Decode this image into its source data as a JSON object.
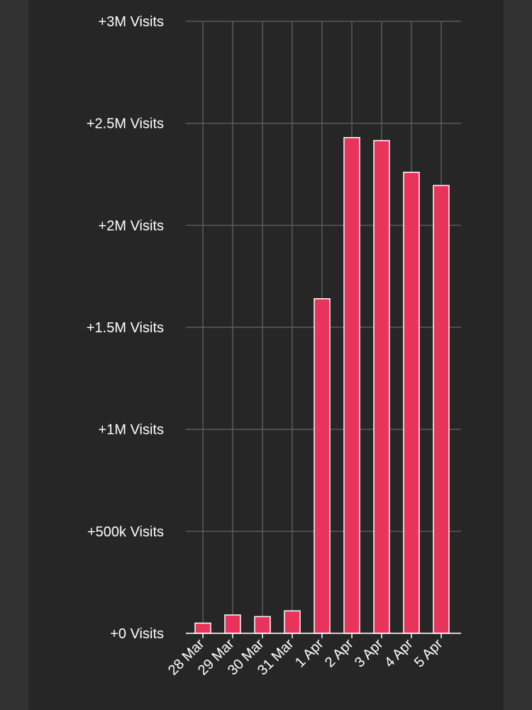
{
  "colors": {
    "background": "#323232",
    "panel": "#262626",
    "bar_fill": "#e8345a",
    "bar_stroke": "#ffffff",
    "grid": "#5a5a5a",
    "axis": "#ffffff",
    "text": "#ffffff"
  },
  "chart_data": {
    "type": "bar",
    "title": "",
    "xlabel": "",
    "ylabel": "",
    "categories": [
      "28 Mar",
      "29 Mar",
      "30 Mar",
      "31 Mar",
      "1 Apr",
      "2 Apr",
      "3 Apr",
      "4 Apr",
      "5 Apr"
    ],
    "values": [
      50000,
      90000,
      82000,
      110000,
      1640000,
      2430000,
      2415000,
      2260000,
      2195000
    ],
    "ylim": [
      0,
      3000000
    ],
    "yticks": [
      0,
      500000,
      1000000,
      1500000,
      2000000,
      2500000,
      3000000
    ],
    "ytick_labels": [
      "+0 Visits",
      "+500k Visits",
      "+1M Visits",
      "+1.5M Visits",
      "+2M Visits",
      "+2.5M Visits",
      "+3M Visits"
    ],
    "grid": true,
    "legend": "none"
  }
}
